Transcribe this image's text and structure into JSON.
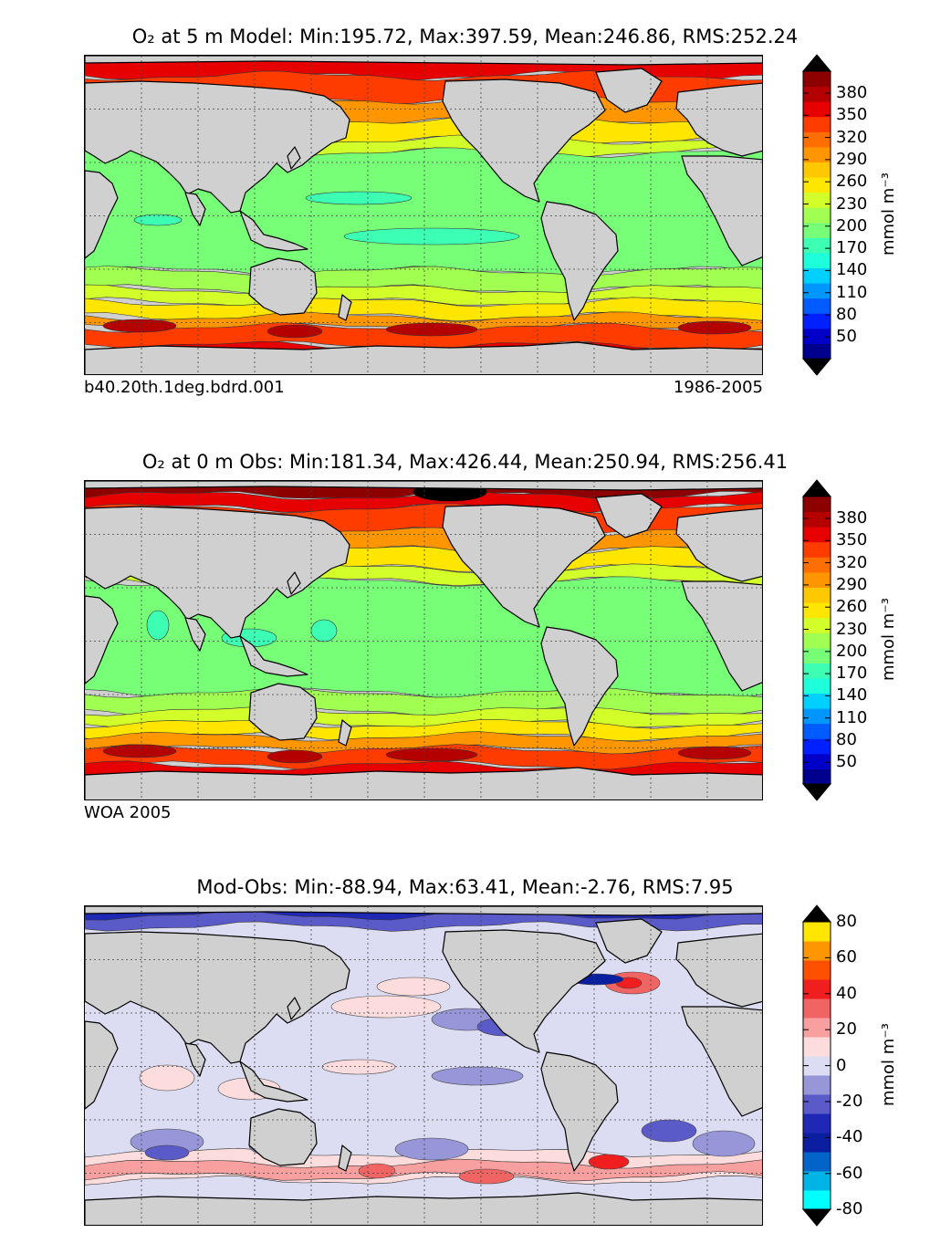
{
  "panels": [
    {
      "id": "model",
      "title": "O₂  at 5 m Model: Min:195.72, Max:397.59, Mean:246.86, RMS:252.24",
      "caption_left": "b40.20th.1deg.bdrd.001",
      "caption_right": "1986-2005",
      "colorbar_unit": "mmol m⁻³"
    },
    {
      "id": "obs",
      "title": "O₂  at 0 m Obs: Min:181.34, Max:426.44, Mean:250.94, RMS:256.41",
      "caption_left": "WOA 2005",
      "caption_right": "",
      "colorbar_unit": "mmol m⁻³"
    },
    {
      "id": "diff",
      "title": "Mod-Obs: Min:-88.94, Max:63.41, Mean:-2.76, RMS:7.95",
      "caption_left": "",
      "caption_right": "",
      "colorbar_unit": "mmol m⁻³"
    }
  ],
  "chart_data": [
    {
      "type": "heatmap",
      "title": "O2 at 5 m Model: Min:195.72, Max:397.59, Mean:246.86, RMS:252.24",
      "stats": {
        "min": 195.72,
        "max": 397.59,
        "mean": 246.86,
        "rms": 252.24
      },
      "depth": "5 m",
      "source": "b40.20th.1deg.bdrd.001",
      "period": "1986-2005",
      "colorbar": {
        "unit": "mmol m^-3",
        "levels": [
          35,
          50,
          65,
          80,
          95,
          110,
          125,
          140,
          155,
          170,
          185,
          200,
          215,
          230,
          245,
          260,
          275,
          290,
          305,
          320,
          335,
          350,
          365,
          380,
          395
        ],
        "tick_labels": [
          "380",
          "350",
          "320",
          "290",
          "260",
          "230",
          "200",
          "170",
          "140",
          "110",
          "80",
          "50"
        ],
        "extend": "both",
        "colors": [
          "#00008f",
          "#0000c8",
          "#0020ff",
          "#005cff",
          "#0096ff",
          "#00d0ff",
          "#1effdc",
          "#3cffb4",
          "#78ff78",
          "#a0ff50",
          "#d2ff2a",
          "#ffe600",
          "#ffc800",
          "#ff9600",
          "#ff6e00",
          "#ff3c00",
          "#e60000",
          "#b40000",
          "#8c0000"
        ]
      },
      "latitude_bands": [
        {
          "lat": "80N",
          "value": 360
        },
        {
          "lat": "60N",
          "value": 330
        },
        {
          "lat": "40N",
          "value": 260
        },
        {
          "lat": "20N",
          "value": 215
        },
        {
          "lat": "0",
          "value": 205
        },
        {
          "lat": "20S",
          "value": 215
        },
        {
          "lat": "40S",
          "value": 260
        },
        {
          "lat": "55S",
          "value": 330
        },
        {
          "lat": "70S",
          "value": 355
        }
      ]
    },
    {
      "type": "heatmap",
      "title": "O2 at 0 m Obs: Min:181.34, Max:426.44, Mean:250.94, RMS:256.41",
      "stats": {
        "min": 181.34,
        "max": 426.44,
        "mean": 250.94,
        "rms": 256.41
      },
      "depth": "0 m",
      "source": "WOA 2005",
      "colorbar": {
        "unit": "mmol m^-3",
        "tick_labels": [
          "380",
          "350",
          "320",
          "290",
          "260",
          "230",
          "200",
          "170",
          "140",
          "110",
          "80",
          "50"
        ],
        "extend": "both"
      },
      "latitude_bands": [
        {
          "lat": "80N",
          "value": 390
        },
        {
          "lat": "60N",
          "value": 330
        },
        {
          "lat": "40N",
          "value": 270
        },
        {
          "lat": "20N",
          "value": 215
        },
        {
          "lat": "0",
          "value": 205
        },
        {
          "lat": "20S",
          "value": 215
        },
        {
          "lat": "40S",
          "value": 265
        },
        {
          "lat": "55S",
          "value": 335
        },
        {
          "lat": "70S",
          "value": 345
        }
      ]
    },
    {
      "type": "heatmap",
      "title": "Mod-Obs: Min:-88.94, Max:63.41, Mean:-2.76, RMS:7.95",
      "stats": {
        "min": -88.94,
        "max": 63.41,
        "mean": -2.76,
        "rms": 7.95
      },
      "colorbar": {
        "unit": "mmol m^-3",
        "tick_labels": [
          "80",
          "60",
          "40",
          "20",
          "0",
          "-20",
          "-40",
          "-60",
          "-80"
        ],
        "extend": "both",
        "colors": [
          "#00ffff",
          "#00b4e6",
          "#0064c8",
          "#0a1ea0",
          "#1e28b4",
          "#5a5ac8",
          "#9696d8",
          "#dcdcf2",
          "#fcdcdc",
          "#f8a0a0",
          "#f06464",
          "#f01e1e",
          "#ff5000",
          "#ff9600",
          "#ffe600"
        ]
      }
    }
  ]
}
